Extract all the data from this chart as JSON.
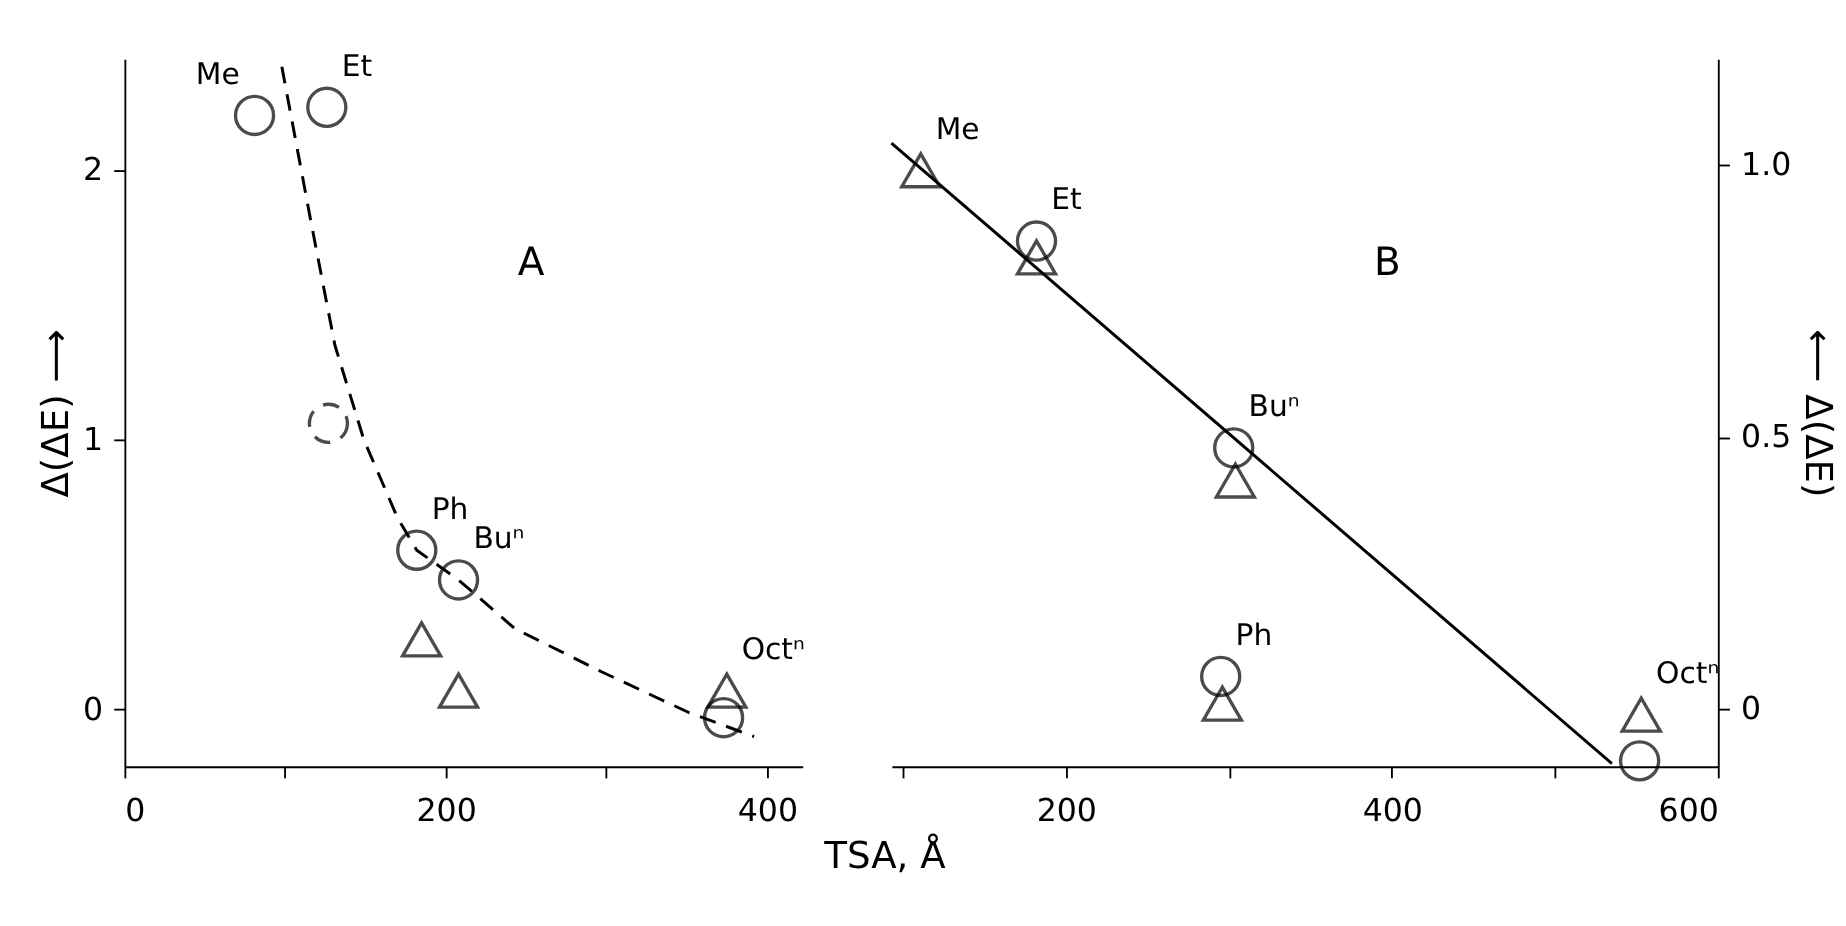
{
  "chart_data": [
    {
      "type": "scatter",
      "ylabel": "Δ(ΔE) ⟶",
      "xlim": [
        0,
        422
      ],
      "ylim": [
        -0.21,
        2.41
      ],
      "xticks": [
        0,
        {
          "value": 100,
          "label": null
        },
        200,
        {
          "value": 300,
          "label": null
        },
        400
      ],
      "yticks": [
        0,
        1,
        2
      ],
      "grid": false,
      "annotations": [
        "A",
        {
          "text": "Me",
          "x": 81,
          "y": 2.2
        },
        {
          "text": "Et",
          "x": 126,
          "y": 2.23
        },
        {
          "text": "Ph",
          "x": 182,
          "y": 0.59
        },
        {
          "text": "Buⁿ",
          "x": 208,
          "y": 0.48
        },
        {
          "text": "Octⁿ",
          "x": 375,
          "y": 0.07
        }
      ],
      "series": [
        {
          "marker": "circle",
          "color": "#000000",
          "x": [
            81,
            126,
            182,
            208,
            373
          ],
          "values": [
            2.2,
            2.23,
            0.59,
            0.48,
            -0.03
          ]
        },
        {
          "marker": "circle",
          "line_style": "dashed",
          "color": "#000000",
          "x": [
            127
          ],
          "values": [
            1.06
          ]
        },
        {
          "marker": "triangle",
          "color": "#000000",
          "x": [
            185,
            208,
            375
          ],
          "values": [
            0.26,
            0.07,
            0.07
          ]
        },
        {
          "type": "line",
          "line_style": "dashed",
          "marker": "none",
          "color": "#000000",
          "x": [
            98,
            116,
            131,
            149,
            170,
            182,
            208,
            243,
            297,
            351,
            392
          ],
          "values": [
            2.38,
            1.81,
            1.35,
            1.0,
            0.71,
            0.59,
            0.48,
            0.3,
            0.14,
            -0.01,
            -0.1
          ]
        }
      ]
    },
    {
      "type": "scatter",
      "xlabel": "TSA, Å",
      "ylabel": "⟵ Δ(ΔE)",
      "xlim": [
        93,
        600
      ],
      "ylim": [
        -0.105,
        1.195
      ],
      "xticks": [
        {
          "value": 100,
          "label": null
        },
        200,
        {
          "value": 300,
          "label": null
        },
        400,
        {
          "value": 500,
          "label": null
        },
        600
      ],
      "yticks": [
        0,
        0.5,
        {
          "value": 1,
          "label": "1.0"
        }
      ],
      "grid": false,
      "annotations": [
        "B",
        {
          "text": "Me",
          "x": 111,
          "y": 0.99
        },
        {
          "text": "Et",
          "x": 182,
          "y": 0.86
        },
        {
          "text": "Buⁿ",
          "x": 303,
          "y": 0.48
        },
        {
          "text": "Ph",
          "x": 295,
          "y": 0.06
        },
        {
          "text": "Octⁿ",
          "x": 553,
          "y": -0.01
        }
      ],
      "series": [
        {
          "marker": "circle",
          "color": "#000000",
          "x": [
            182,
            303,
            295,
            552
          ],
          "values": [
            0.86,
            0.48,
            0.06,
            -0.095
          ]
        },
        {
          "marker": "triangle",
          "color": "#000000",
          "x": [
            111,
            182,
            304,
            296,
            553
          ],
          "values": [
            0.99,
            0.83,
            0.42,
            0.01,
            -0.01
          ]
        },
        {
          "type": "line",
          "line_style": "solid",
          "marker": "none",
          "color": "#000000",
          "x": [
            93,
            535
          ],
          "values": [
            1.04,
            -0.1
          ]
        }
      ]
    }
  ]
}
